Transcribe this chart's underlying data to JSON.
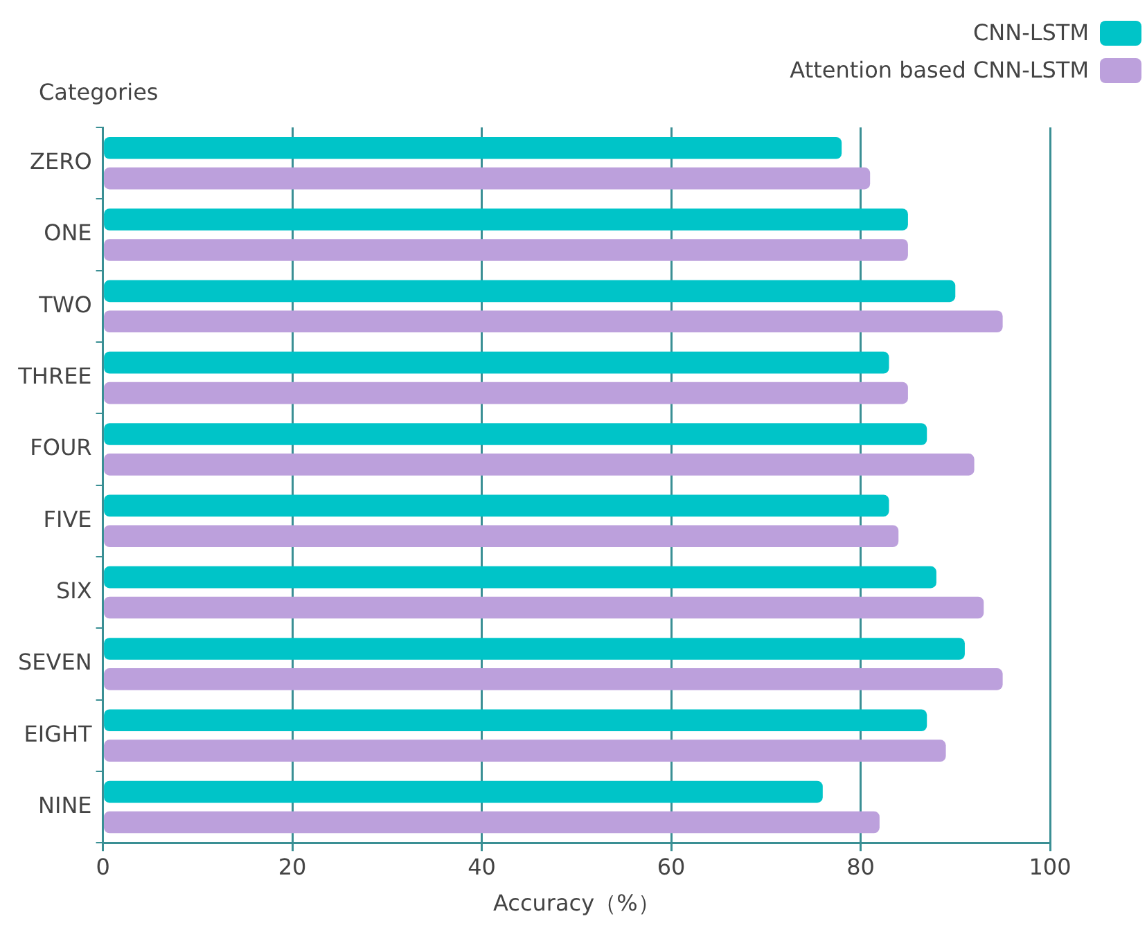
{
  "chart_data": {
    "type": "bar",
    "orientation": "horizontal",
    "xlabel": "Accuracy（%）",
    "ylabel": "Categories",
    "categories": [
      "ZERO",
      "ONE",
      "TWO",
      "THREE",
      "FOUR",
      "FIVE",
      "SIX",
      "SEVEN",
      "EIGHT",
      "NINE"
    ],
    "series": [
      {
        "name": "CNN-LSTM",
        "color": "#00c4c8",
        "values": [
          78,
          85,
          90,
          83,
          87,
          83,
          88,
          91,
          87,
          76
        ]
      },
      {
        "name": "Attention based CNN-LSTM",
        "color": "#bca0dc",
        "values": [
          81,
          85,
          95,
          85,
          92,
          84,
          93,
          95,
          89,
          82
        ]
      }
    ],
    "xlim": [
      0,
      100
    ],
    "xticks": [
      0,
      20,
      40,
      60,
      80,
      100
    ],
    "grid": "x",
    "legend": "top right"
  }
}
